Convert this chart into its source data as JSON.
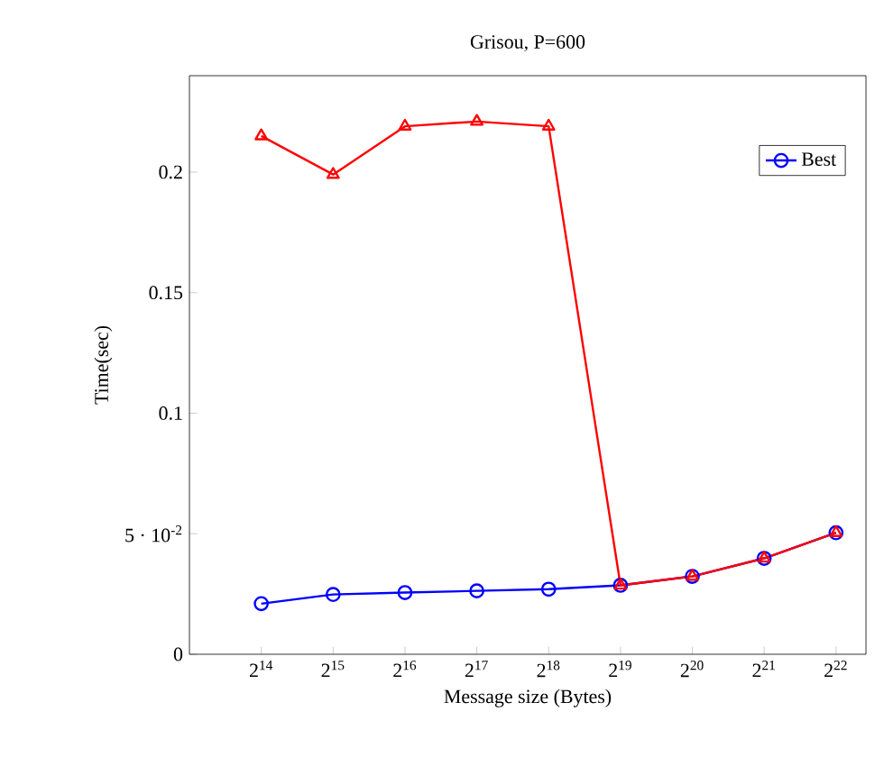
{
  "chart_data": {
    "type": "line",
    "title": "Grisou, P=600",
    "xlabel": "Message size (Bytes)",
    "ylabel": "Time(sec)",
    "log": "x",
    "x": [
      16384,
      32768,
      65536,
      131072,
      262144,
      524288,
      1048576,
      2097152,
      4194304
    ],
    "series": [
      {
        "name": "Best",
        "color": "#0000ff",
        "marker": "circle",
        "values": [
          0.021,
          0.0248,
          0.0256,
          0.0263,
          0.027,
          0.0286,
          0.0323,
          0.0398,
          0.0504
        ]
      },
      {
        "color": "#ff0000",
        "marker": "triangle",
        "values": [
          0.215,
          0.199,
          0.219,
          0.221,
          0.219,
          0.0286,
          0.0323,
          0.0398,
          0.0504
        ]
      }
    ],
    "xlim": [
      8192,
      5600000
    ],
    "ylim": [
      0,
      0.24
    ],
    "xticks": [
      {
        "value": 16384,
        "label": "2$^{14}$"
      },
      {
        "value": 32768,
        "label": "2$^{15}$"
      },
      {
        "value": 65536,
        "label": "2$^{16}$"
      },
      {
        "value": 131072,
        "label": "2$^{17}$"
      },
      {
        "value": 262144,
        "label": "2$^{18}$"
      },
      {
        "value": 524288,
        "label": "2$^{19}$"
      },
      {
        "value": 1048576,
        "label": "2$^{20}$"
      },
      {
        "value": 2097152,
        "label": "2$^{21}$"
      },
      {
        "value": 4194304,
        "label": "2$^{22}$"
      }
    ],
    "yticks": [
      0,
      {
        "value": 0.05,
        "label": "5 · 10$^{-2}$"
      },
      0.1,
      0.15,
      0.2
    ],
    "legend": "top right",
    "grid": false,
    "line_style": "solid"
  }
}
